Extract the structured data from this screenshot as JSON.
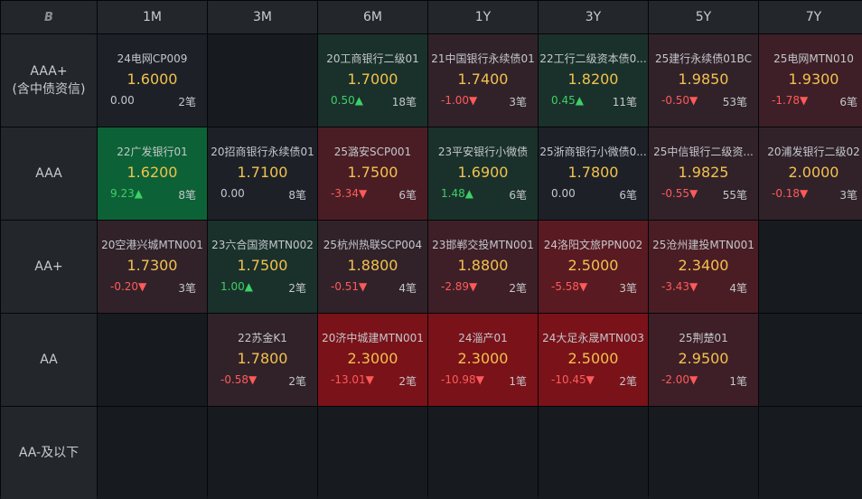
{
  "logo": "B",
  "columns": [
    "1M",
    "3M",
    "6M",
    "1Y",
    "3Y",
    "5Y",
    "7Y"
  ],
  "rows": [
    {
      "label1": "AAA+",
      "label2": "(含中债资信)",
      "cells": [
        {
          "name": "24电网CP009",
          "rate": "1.6000",
          "change": "0.00",
          "count": "2笔",
          "dir": "flat",
          "bg": "#1d2127"
        },
        null,
        {
          "name": "20工商银行二级01",
          "rate": "1.7000",
          "change": "0.50▲",
          "count": "18笔",
          "dir": "up",
          "bg": "#1a312b"
        },
        {
          "name": "21中国银行永续债01",
          "rate": "1.7400",
          "change": "-1.00▼",
          "count": "3笔",
          "dir": "down",
          "bg": "#31222a"
        },
        {
          "name": "22工行二级资本债0...",
          "rate": "1.8200",
          "change": "0.45▲",
          "count": "11笔",
          "dir": "up",
          "bg": "#1a312b"
        },
        {
          "name": "25建行永续债01BC",
          "rate": "1.9850",
          "change": "-0.50▼",
          "count": "53笔",
          "dir": "down",
          "bg": "#31222a"
        },
        {
          "name": "25电网MTN010",
          "rate": "1.9300",
          "change": "-1.78▼",
          "count": "6笔",
          "dir": "down",
          "bg": "#3e1f27"
        }
      ]
    },
    {
      "label1": "AAA",
      "label2": "",
      "cells": [
        {
          "name": "22广发银行01",
          "rate": "1.6200",
          "change": "9.23▲",
          "count": "8笔",
          "dir": "up",
          "bg": "#0c6236"
        },
        {
          "name": "20招商银行永续债01",
          "rate": "1.7100",
          "change": "0.00",
          "count": "8笔",
          "dir": "flat",
          "bg": "#1d2127"
        },
        {
          "name": "25潞安SCP001",
          "rate": "1.7500",
          "change": "-3.34▼",
          "count": "6笔",
          "dir": "down",
          "bg": "#4a1d24"
        },
        {
          "name": "23平安银行小微债",
          "rate": "1.6900",
          "change": "1.48▲",
          "count": "6笔",
          "dir": "up",
          "bg": "#1a312b"
        },
        {
          "name": "25浙商银行小微债0...",
          "rate": "1.7800",
          "change": "0.00",
          "count": "6笔",
          "dir": "flat",
          "bg": "#1d2127"
        },
        {
          "name": "25中信银行二级资...",
          "rate": "1.9825",
          "change": "-0.55▼",
          "count": "55笔",
          "dir": "down",
          "bg": "#31222a"
        },
        {
          "name": "20浦发银行二级02",
          "rate": "2.0000",
          "change": "-0.18▼",
          "count": "3笔",
          "dir": "down",
          "bg": "#31222a"
        }
      ]
    },
    {
      "label1": "AA+",
      "label2": "",
      "cells": [
        {
          "name": "20空港兴城MTN001",
          "rate": "1.7300",
          "change": "-0.20▼",
          "count": "3笔",
          "dir": "down",
          "bg": "#31222a"
        },
        {
          "name": "23六合国资MTN002",
          "rate": "1.7500",
          "change": "1.00▲",
          "count": "2笔",
          "dir": "up",
          "bg": "#1a312b"
        },
        {
          "name": "25杭州热联SCP004",
          "rate": "1.8800",
          "change": "-0.51▼",
          "count": "4笔",
          "dir": "down",
          "bg": "#31222a"
        },
        {
          "name": "23邯郸交投MTN001",
          "rate": "1.8800",
          "change": "-2.89▼",
          "count": "2笔",
          "dir": "down",
          "bg": "#3e1f27"
        },
        {
          "name": "24洛阳文旅PPN002",
          "rate": "2.5000",
          "change": "-5.58▼",
          "count": "3笔",
          "dir": "down",
          "bg": "#5a1a22"
        },
        {
          "name": "25沧州建投MTN001",
          "rate": "2.3400",
          "change": "-3.43▼",
          "count": "4笔",
          "dir": "down",
          "bg": "#4a1d24"
        },
        null
      ]
    },
    {
      "label1": "AA",
      "label2": "",
      "cells": [
        null,
        {
          "name": "22苏金K1",
          "rate": "1.7800",
          "change": "-0.58▼",
          "count": "2笔",
          "dir": "down",
          "bg": "#31222a"
        },
        {
          "name": "20济中城建MTN001",
          "rate": "2.3000",
          "change": "-13.01▼",
          "count": "2笔",
          "dir": "down",
          "bg": "#7a1219"
        },
        {
          "name": "24淄产01",
          "rate": "2.3000",
          "change": "-10.98▼",
          "count": "1笔",
          "dir": "down",
          "bg": "#7a1219"
        },
        {
          "name": "24大足永晟MTN003",
          "rate": "2.5000",
          "change": "-10.45▼",
          "count": "2笔",
          "dir": "down",
          "bg": "#7a1219"
        },
        {
          "name": "25荆楚01",
          "rate": "2.9500",
          "change": "-2.00▼",
          "count": "1笔",
          "dir": "down",
          "bg": "#3e1f27"
        },
        null
      ]
    },
    {
      "label1": "AA-及以下",
      "label2": "",
      "cells": [
        null,
        null,
        null,
        null,
        null,
        null,
        null
      ]
    }
  ]
}
